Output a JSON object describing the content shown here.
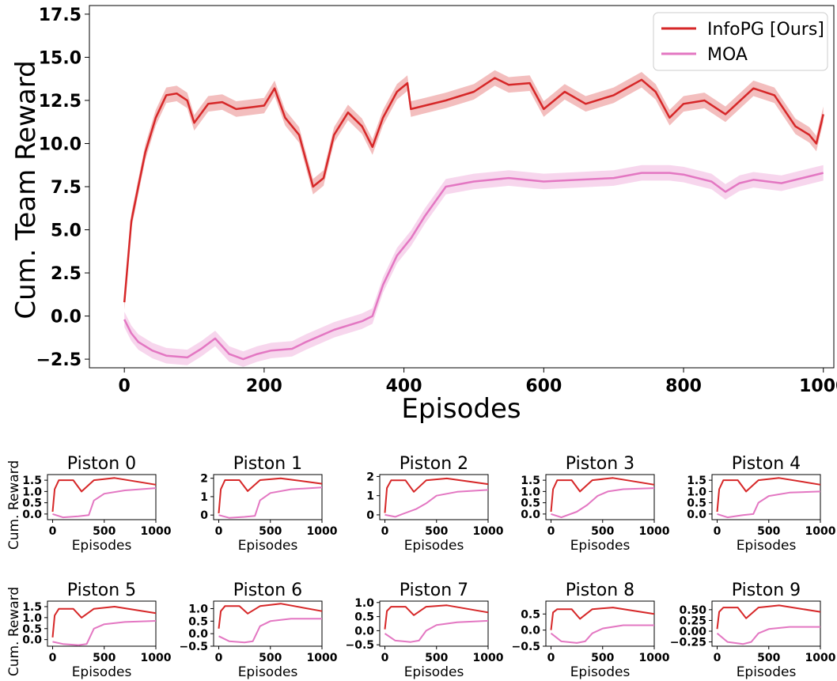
{
  "colors": {
    "infopg": "#d62728",
    "moa": "#e377c2"
  },
  "main": {
    "xlabel": "Episodes",
    "ylabel": "Cum. Team Reward",
    "xticks": [
      "0",
      "200",
      "400",
      "600",
      "800",
      "1000"
    ],
    "yticks": [
      "−2.5",
      "0.0",
      "2.5",
      "5.0",
      "7.5",
      "10.0",
      "12.5",
      "15.0",
      "17.5"
    ],
    "legend": [
      "InfoPG [Ours]",
      "MOA"
    ]
  },
  "small": {
    "xlabel": "Episodes",
    "ylabel": "Cum. Reward",
    "xticks": [
      "0",
      "500",
      "1000"
    ]
  },
  "chart_data": [
    {
      "type": "line",
      "title": "",
      "xlabel": "Episodes",
      "ylabel": "Cum. Team Reward",
      "xlim": [
        -50,
        1015
      ],
      "ylim": [
        -3,
        18
      ],
      "legend_position": "top-right",
      "grid": false,
      "series": [
        {
          "name": "InfoPG [Ours]",
          "color": "#d62728",
          "x": [
            0,
            10,
            20,
            30,
            45,
            60,
            75,
            90,
            100,
            120,
            140,
            160,
            180,
            200,
            215,
            230,
            250,
            270,
            285,
            300,
            320,
            340,
            355,
            370,
            390,
            405,
            410,
            430,
            460,
            500,
            530,
            550,
            580,
            600,
            630,
            660,
            700,
            740,
            760,
            780,
            800,
            830,
            860,
            900,
            930,
            960,
            980,
            990,
            1000
          ],
          "y": [
            0.8,
            5.5,
            7.5,
            9.5,
            11.5,
            12.8,
            12.9,
            12.5,
            11.2,
            12.3,
            12.4,
            12.0,
            12.1,
            12.2,
            13.2,
            11.5,
            10.5,
            7.5,
            8.0,
            10.5,
            11.8,
            11.0,
            9.8,
            11.5,
            13.0,
            13.5,
            12.0,
            12.2,
            12.5,
            13.0,
            13.8,
            13.4,
            13.5,
            12.0,
            13.0,
            12.3,
            12.8,
            13.7,
            13.0,
            11.5,
            12.3,
            12.5,
            11.7,
            13.2,
            12.8,
            11.0,
            10.5,
            10.0,
            11.7
          ]
        },
        {
          "name": "MOA",
          "color": "#e377c2",
          "x": [
            0,
            10,
            20,
            40,
            60,
            90,
            110,
            130,
            150,
            170,
            190,
            210,
            240,
            260,
            300,
            340,
            355,
            370,
            390,
            410,
            430,
            460,
            500,
            550,
            600,
            650,
            700,
            740,
            780,
            800,
            840,
            860,
            880,
            900,
            940,
            1000
          ],
          "y": [
            -0.2,
            -1.0,
            -1.5,
            -2.0,
            -2.3,
            -2.4,
            -1.9,
            -1.3,
            -2.2,
            -2.5,
            -2.2,
            -2.0,
            -1.9,
            -1.5,
            -0.8,
            -0.3,
            0.0,
            1.8,
            3.5,
            4.5,
            5.8,
            7.5,
            7.8,
            8.0,
            7.8,
            7.9,
            8.0,
            8.3,
            8.3,
            8.2,
            7.8,
            7.2,
            7.7,
            7.9,
            7.7,
            8.3
          ]
        }
      ]
    },
    {
      "type": "line",
      "title": "Piston 0",
      "ylabel": "Cum. Reward",
      "xlabel": "Episodes",
      "yticks": [
        0.0,
        0.5,
        1.0,
        1.5
      ],
      "ylim": [
        -0.25,
        1.75
      ],
      "series": [
        {
          "name": "InfoPG [Ours]",
          "x": [
            0,
            20,
            60,
            200,
            280,
            400,
            600,
            1000
          ],
          "y": [
            0.1,
            1.1,
            1.5,
            1.5,
            1.0,
            1.5,
            1.6,
            1.3
          ]
        },
        {
          "name": "MOA",
          "x": [
            0,
            100,
            250,
            350,
            400,
            500,
            700,
            1000
          ],
          "y": [
            0.0,
            -0.15,
            -0.1,
            -0.05,
            0.6,
            0.9,
            1.05,
            1.15
          ]
        }
      ]
    },
    {
      "type": "line",
      "title": "Piston 1",
      "ylabel": "Cum. Reward",
      "xlabel": "Episodes",
      "yticks": [
        0,
        1,
        2
      ],
      "ylim": [
        -0.25,
        2.2
      ],
      "series": [
        {
          "name": "InfoPG [Ours]",
          "x": [
            0,
            20,
            60,
            200,
            280,
            400,
            600,
            1000
          ],
          "y": [
            0.1,
            1.4,
            1.9,
            1.9,
            1.3,
            1.9,
            2.0,
            1.7
          ]
        },
        {
          "name": "MOA",
          "x": [
            0,
            100,
            250,
            350,
            400,
            500,
            700,
            1000
          ],
          "y": [
            0.0,
            -0.15,
            -0.1,
            -0.05,
            0.8,
            1.2,
            1.4,
            1.5
          ]
        }
      ]
    },
    {
      "type": "line",
      "title": "Piston 2",
      "ylabel": "Cum. Reward",
      "xlabel": "Episodes",
      "yticks": [
        0,
        1,
        2
      ],
      "ylim": [
        -0.25,
        2.1
      ],
      "series": [
        {
          "name": "InfoPG [Ours]",
          "x": [
            0,
            20,
            60,
            200,
            280,
            400,
            600,
            1000
          ],
          "y": [
            0.1,
            1.4,
            1.8,
            1.8,
            1.2,
            1.8,
            1.9,
            1.6
          ]
        },
        {
          "name": "MOA",
          "x": [
            0,
            100,
            200,
            300,
            400,
            500,
            700,
            1000
          ],
          "y": [
            0.0,
            -0.1,
            0.1,
            0.3,
            0.6,
            1.0,
            1.2,
            1.3
          ]
        }
      ]
    },
    {
      "type": "line",
      "title": "Piston 3",
      "ylabel": "Cum. Reward",
      "xlabel": "Episodes",
      "yticks": [
        0.0,
        0.5,
        1.0,
        1.5
      ],
      "ylim": [
        -0.25,
        1.75
      ],
      "series": [
        {
          "name": "InfoPG [Ours]",
          "x": [
            0,
            20,
            60,
            200,
            280,
            400,
            600,
            1000
          ],
          "y": [
            0.1,
            1.1,
            1.5,
            1.5,
            1.0,
            1.5,
            1.6,
            1.3
          ]
        },
        {
          "name": "MOA",
          "x": [
            0,
            100,
            250,
            350,
            450,
            550,
            700,
            1000
          ],
          "y": [
            0.0,
            -0.15,
            0.1,
            0.4,
            0.8,
            1.0,
            1.1,
            1.15
          ]
        }
      ]
    },
    {
      "type": "line",
      "title": "Piston 4",
      "ylabel": "Cum. Reward",
      "xlabel": "Episodes",
      "yticks": [
        0.0,
        0.5,
        1.0,
        1.5
      ],
      "ylim": [
        -0.25,
        1.75
      ],
      "series": [
        {
          "name": "InfoPG [Ours]",
          "x": [
            0,
            20,
            60,
            200,
            280,
            400,
            600,
            1000
          ],
          "y": [
            0.1,
            1.1,
            1.5,
            1.5,
            1.0,
            1.5,
            1.6,
            1.3
          ]
        },
        {
          "name": "MOA",
          "x": [
            0,
            100,
            250,
            350,
            400,
            500,
            700,
            1000
          ],
          "y": [
            0.0,
            -0.15,
            -0.05,
            0.0,
            0.5,
            0.8,
            0.95,
            1.0
          ]
        }
      ]
    },
    {
      "type": "line",
      "title": "Piston 5",
      "ylabel": "Cum. Reward",
      "xlabel": "Episodes",
      "yticks": [
        0.0,
        0.5,
        1.0,
        1.5
      ],
      "ylim": [
        -0.3,
        1.75
      ],
      "series": [
        {
          "name": "InfoPG [Ours]",
          "x": [
            0,
            20,
            60,
            200,
            280,
            400,
            600,
            1000
          ],
          "y": [
            0.1,
            1.1,
            1.4,
            1.4,
            1.0,
            1.4,
            1.5,
            1.2
          ]
        },
        {
          "name": "MOA",
          "x": [
            0,
            100,
            250,
            330,
            400,
            500,
            700,
            1000
          ],
          "y": [
            -0.1,
            -0.2,
            -0.25,
            -0.2,
            0.5,
            0.7,
            0.8,
            0.85
          ]
        }
      ]
    },
    {
      "type": "line",
      "title": "Piston 6",
      "ylabel": "Cum. Reward",
      "xlabel": "Episodes",
      "yticks": [
        -0.5,
        0.0,
        0.5,
        1.0
      ],
      "ylim": [
        -0.5,
        1.3
      ],
      "series": [
        {
          "name": "InfoPG [Ours]",
          "x": [
            0,
            20,
            60,
            200,
            280,
            400,
            600,
            1000
          ],
          "y": [
            0.2,
            0.9,
            1.1,
            1.1,
            0.8,
            1.1,
            1.2,
            0.9
          ]
        },
        {
          "name": "MOA",
          "x": [
            0,
            100,
            250,
            330,
            400,
            500,
            700,
            1000
          ],
          "y": [
            -0.1,
            -0.3,
            -0.35,
            -0.3,
            0.3,
            0.5,
            0.6,
            0.6
          ]
        }
      ]
    },
    {
      "type": "line",
      "title": "Piston 7",
      "ylabel": "Cum. Reward",
      "xlabel": "Episodes",
      "yticks": [
        -0.5,
        0.0,
        0.5,
        1.0
      ],
      "ylim": [
        -0.55,
        1.05
      ],
      "series": [
        {
          "name": "InfoPG [Ours]",
          "x": [
            0,
            20,
            60,
            200,
            280,
            400,
            600,
            1000
          ],
          "y": [
            0.05,
            0.7,
            0.85,
            0.85,
            0.55,
            0.85,
            0.9,
            0.65
          ]
        },
        {
          "name": "MOA",
          "x": [
            0,
            100,
            250,
            330,
            400,
            500,
            700,
            1000
          ],
          "y": [
            -0.1,
            -0.35,
            -0.4,
            -0.35,
            0.0,
            0.2,
            0.3,
            0.35
          ]
        }
      ]
    },
    {
      "type": "line",
      "title": "Piston 8",
      "ylabel": "Cum. Reward",
      "xlabel": "Episodes",
      "yticks": [
        -0.5,
        0.0,
        0.5
      ],
      "ylim": [
        -0.5,
        0.9
      ],
      "series": [
        {
          "name": "InfoPG [Ours]",
          "x": [
            0,
            20,
            60,
            200,
            280,
            400,
            600,
            1000
          ],
          "y": [
            0.0,
            0.55,
            0.65,
            0.65,
            0.35,
            0.65,
            0.7,
            0.5
          ]
        },
        {
          "name": "MOA",
          "x": [
            0,
            100,
            250,
            330,
            400,
            500,
            700,
            1000
          ],
          "y": [
            -0.1,
            -0.35,
            -0.4,
            -0.35,
            -0.1,
            0.05,
            0.15,
            0.15
          ]
        }
      ]
    },
    {
      "type": "line",
      "title": "Piston 9",
      "ylabel": "Cum. Reward",
      "xlabel": "Episodes",
      "yticks": [
        -0.25,
        0.0,
        0.25,
        0.5
      ],
      "ylim": [
        -0.35,
        0.7
      ],
      "series": [
        {
          "name": "InfoPG [Ours]",
          "x": [
            0,
            20,
            60,
            200,
            280,
            400,
            600,
            1000
          ],
          "y": [
            0.05,
            0.45,
            0.55,
            0.55,
            0.3,
            0.55,
            0.6,
            0.45
          ]
        },
        {
          "name": "MOA",
          "x": [
            0,
            100,
            250,
            330,
            400,
            500,
            700,
            1000
          ],
          "y": [
            -0.05,
            -0.25,
            -0.3,
            -0.25,
            -0.05,
            0.05,
            0.1,
            0.1
          ]
        }
      ]
    }
  ]
}
